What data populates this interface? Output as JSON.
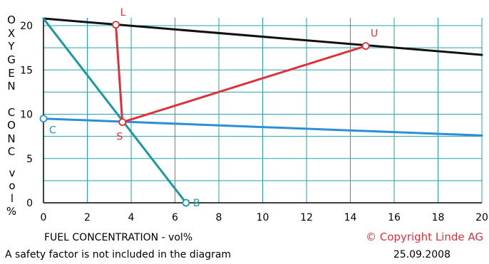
{
  "chart_data": {
    "type": "line",
    "xlabel": "FUEL CONCENTRATION - vol%",
    "ylabel": "OXYGEN CONC vol%",
    "ylabel_letters": [
      "O",
      "X",
      "Y",
      "G",
      "E",
      "N",
      "C",
      "O",
      "N",
      "C",
      "v",
      "o",
      "l",
      "%"
    ],
    "xlim": [
      0,
      20
    ],
    "ylim": [
      0,
      20.8
    ],
    "x_ticks": [
      0,
      2,
      4,
      6,
      8,
      10,
      12,
      14,
      16,
      18,
      20
    ],
    "y_ticks": [
      0,
      5,
      10,
      15,
      20
    ],
    "grid": true,
    "series": [
      {
        "color": "#111111",
        "points": [
          [
            0,
            20.8
          ],
          [
            20,
            16.7
          ]
        ]
      },
      {
        "color": "#1a9aa0",
        "points": [
          [
            0,
            20.8
          ],
          [
            6.5,
            0
          ]
        ]
      },
      {
        "color": "#2b8fd6",
        "points": [
          [
            0,
            9.5
          ],
          [
            20,
            7.6
          ]
        ]
      },
      {
        "color": "#e0303a",
        "points": [
          [
            3.3,
            20.1
          ],
          [
            3.6,
            9.1
          ],
          [
            14.7,
            17.7
          ]
        ]
      }
    ],
    "markers": [
      {
        "label": "L",
        "x": 3.3,
        "y": 20.1,
        "color": "#e0303a"
      },
      {
        "label": "S",
        "x": 3.6,
        "y": 9.1,
        "color": "#e0303a"
      },
      {
        "label": "U",
        "x": 14.7,
        "y": 17.7,
        "color": "#e0303a"
      },
      {
        "label": "C",
        "x": 0,
        "y": 9.5,
        "color": "#2b8fd6"
      },
      {
        "label": "B",
        "x": 6.5,
        "y": 0,
        "color": "#1a9aa0"
      }
    ]
  },
  "footer": {
    "copyright": "© Copyright Linde AG",
    "note": "A safety factor is not included in the diagram",
    "date": "25.09.2008"
  },
  "colors": {
    "grid": "#23a3a8",
    "axis": "#000000"
  }
}
